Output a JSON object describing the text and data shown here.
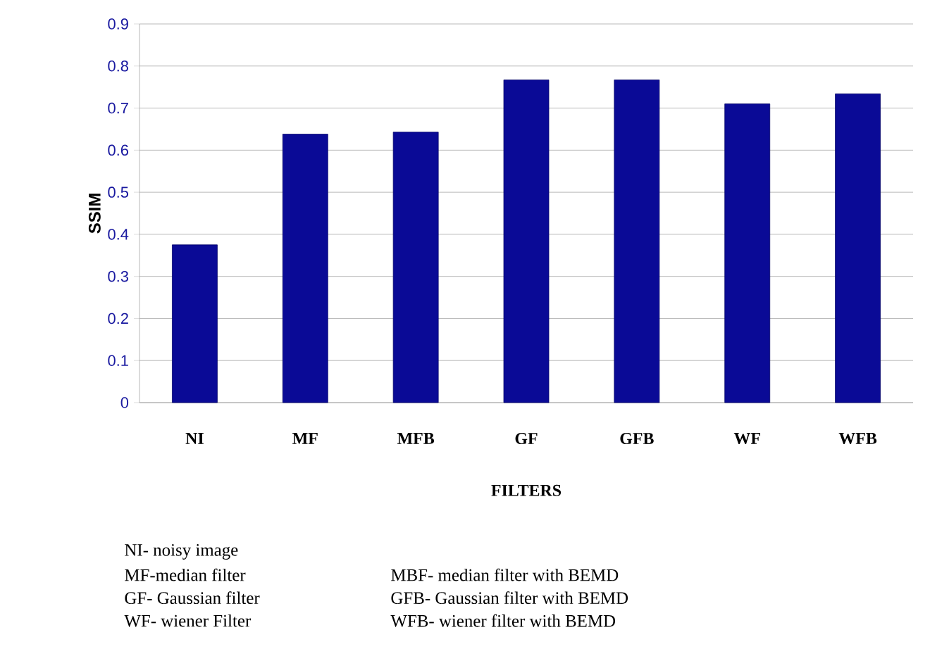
{
  "chart_data": {
    "type": "bar",
    "categories": [
      "NI",
      "MF",
      "MFB",
      "GF",
      "GFB",
      "WF",
      "WFB"
    ],
    "values": [
      0.375,
      0.638,
      0.643,
      0.767,
      0.767,
      0.71,
      0.734
    ],
    "color": "#0a0a96",
    "ylim": [
      0,
      0.9
    ],
    "yticks": [
      0,
      0.1,
      0.2,
      0.3,
      0.4,
      0.5,
      0.6,
      0.7,
      0.8,
      0.9
    ],
    "grid": "y",
    "xlabel": "FILTERS",
    "ylabel": "SSIM",
    "annotations": [
      "NI- noisy image",
      "MF-median filter",
      "MBF- median filter with BEMD",
      "GF- Gaussian filter",
      "GFB- Gaussian filter with BEMD",
      "WF- wiener Filter",
      "WFB- wiener filter with BEMD"
    ]
  }
}
